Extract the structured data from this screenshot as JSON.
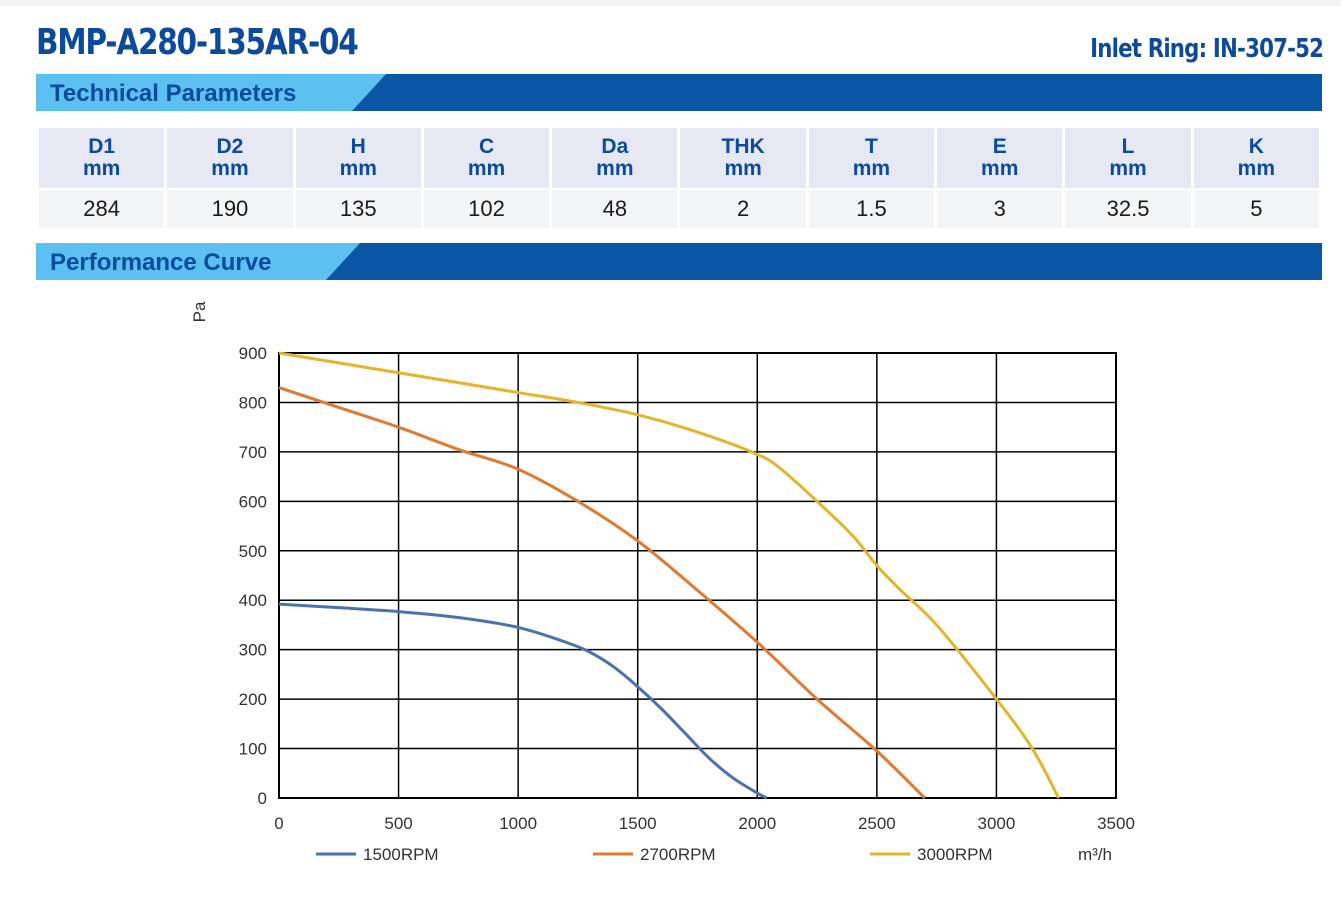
{
  "header": {
    "model": "BMP-A280-135AR-04",
    "inlet": "Inlet Ring: IN-307-52"
  },
  "sections": {
    "technical": "Technical Parameters",
    "performance": "Performance Curve"
  },
  "params": {
    "headers": [
      {
        "name": "D1",
        "unit": "mm"
      },
      {
        "name": "D2",
        "unit": "mm"
      },
      {
        "name": "H",
        "unit": "mm"
      },
      {
        "name": "C",
        "unit": "mm"
      },
      {
        "name": "Da",
        "unit": "mm"
      },
      {
        "name": "THK",
        "unit": "mm"
      },
      {
        "name": "T",
        "unit": "mm"
      },
      {
        "name": "E",
        "unit": "mm"
      },
      {
        "name": "L",
        "unit": "mm"
      },
      {
        "name": "K",
        "unit": "mm"
      }
    ],
    "values": [
      "284",
      "190",
      "135",
      "102",
      "48",
      "2",
      "1.5",
      "3",
      "32.5",
      "5"
    ]
  },
  "chart_data": {
    "type": "line",
    "ylabel": "Pa",
    "xlabel": "m³/h",
    "xlim": [
      0,
      3500
    ],
    "ylim": [
      0,
      900
    ],
    "xticks": [
      "0",
      "500",
      "1000",
      "1500",
      "2000",
      "2500",
      "3000",
      "3500"
    ],
    "yticks": [
      "0",
      "100",
      "200",
      "300",
      "400",
      "500",
      "600",
      "700",
      "800",
      "900"
    ],
    "grid": true,
    "legend": "bottom",
    "series": [
      {
        "name": "1500RPM",
        "color": "#4a72b0",
        "x": [
          0,
          250,
          500,
          750,
          1000,
          1200,
          1300,
          1400,
          1500,
          1600,
          1700,
          1800,
          1900,
          2000,
          2040
        ],
        "y": [
          392,
          385,
          377,
          365,
          345,
          315,
          295,
          265,
          225,
          180,
          130,
          80,
          40,
          10,
          0
        ]
      },
      {
        "name": "2700RPM",
        "color": "#e07a2f",
        "x": [
          0,
          250,
          500,
          750,
          1000,
          1250,
          1500,
          1750,
          2000,
          2250,
          2500,
          2700
        ],
        "y": [
          830,
          790,
          750,
          705,
          665,
          600,
          520,
          420,
          315,
          200,
          95,
          0
        ]
      },
      {
        "name": "3000RPM",
        "color": "#e6b42a",
        "x": [
          0,
          250,
          500,
          750,
          1000,
          1250,
          1500,
          1750,
          2000,
          2100,
          2250,
          2400,
          2500,
          2600,
          2750,
          3000,
          3150,
          3260
        ],
        "y": [
          900,
          880,
          860,
          840,
          820,
          800,
          775,
          740,
          695,
          665,
          600,
          530,
          470,
          420,
          350,
          200,
          100,
          0
        ]
      }
    ]
  }
}
